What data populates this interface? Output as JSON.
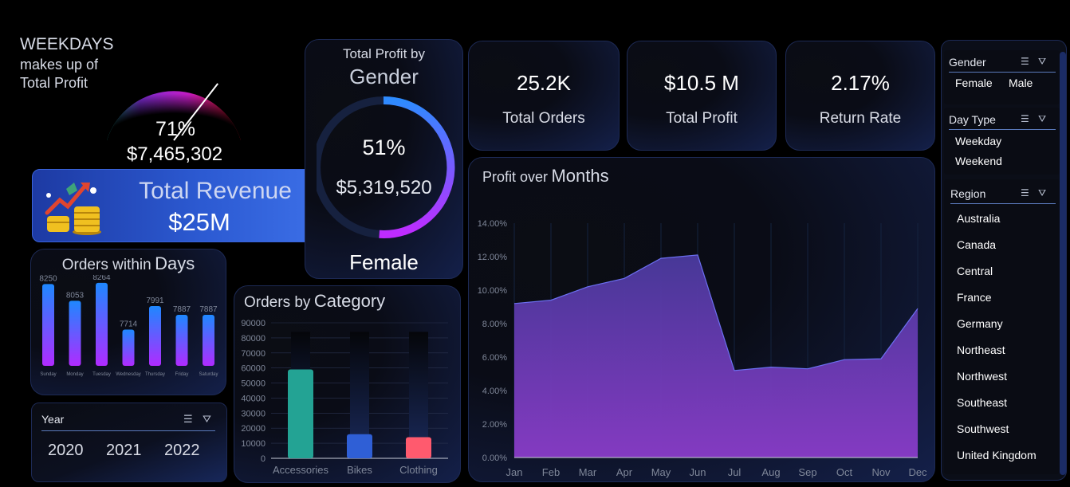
{
  "gauge": {
    "title_line1": "WEEKDAYS",
    "title_line2": "makes up of",
    "title_line3": "Total Profit",
    "percent": "71%",
    "value": "$7,465,302",
    "fraction": 0.71
  },
  "revenue": {
    "title": "Total Revenue",
    "value": "$25M"
  },
  "gender_card": {
    "title_small": "Total Profit by",
    "title_big": "Gender",
    "percent": "51%",
    "value": "$5,319,520",
    "label": "Female",
    "fraction": 0.51
  },
  "kpis": [
    {
      "value": "25.2K",
      "label": "Total Orders"
    },
    {
      "value": "$10.5 M",
      "label": "Total Profit"
    },
    {
      "value": "2.17%",
      "label": "Return Rate"
    }
  ],
  "orders_days": {
    "title_small": "Orders within",
    "title_big": "Days",
    "days": [
      "Sunday",
      "Monday",
      "Tuesday",
      "Wednesday",
      "Thursday",
      "Friday",
      "Saturday"
    ],
    "values": [
      8250,
      8053,
      8264,
      7714,
      7991,
      7887,
      7887
    ],
    "value_labels": [
      "8250",
      "8053",
      "8264",
      "7714",
      "7991",
      "7887",
      "7887"
    ]
  },
  "year_slicer": {
    "header": "Year",
    "items": [
      "2020",
      "2021",
      "2022"
    ]
  },
  "orders_category": {
    "title_small": "Orders by",
    "title_big": "Category",
    "categories": [
      "Accessories",
      "Bikes",
      "Clothing"
    ],
    "values": [
      59000,
      16000,
      14000
    ],
    "ylim": [
      0,
      90000
    ],
    "y_ticks": [
      "90000",
      "80000",
      "70000",
      "60000",
      "50000",
      "40000",
      "30000",
      "20000",
      "10000",
      "0"
    ],
    "colors": [
      "#23a394",
      "#2f5fd6",
      "#ff5a6e"
    ]
  },
  "profit_months": {
    "title_small": "Profit over",
    "title_big": "Months",
    "months": [
      "Jan",
      "Feb",
      "Mar",
      "Apr",
      "May",
      "Jun",
      "Jul",
      "Aug",
      "Sep",
      "Oct",
      "Nov",
      "Dec"
    ],
    "values": [
      9.2,
      9.4,
      10.2,
      10.7,
      11.9,
      12.1,
      5.2,
      5.4,
      5.3,
      5.85,
      5.9,
      8.9
    ],
    "ylim": [
      0,
      14
    ],
    "y_ticks": [
      "14.00%",
      "12.00%",
      "10.00%",
      "8.00%",
      "6.00%",
      "4.00%",
      "2.00%",
      "0.00%"
    ]
  },
  "gender_slicer": {
    "header": "Gender",
    "items": [
      "Female",
      "Male"
    ]
  },
  "daytype_slicer": {
    "header": "Day Type",
    "items": [
      "Weekday",
      "Weekend"
    ]
  },
  "region_slicer": {
    "header": "Region",
    "items": [
      "Australia",
      "Canada",
      "Central",
      "France",
      "Germany",
      "Northeast",
      "Northwest",
      "Southeast",
      "Southwest",
      "United Kingdom"
    ]
  },
  "icons": {
    "multiselect": "multiselect-icon",
    "clear_filter": "clear-filter-icon",
    "revenue": "revenue-coins-icon"
  }
}
